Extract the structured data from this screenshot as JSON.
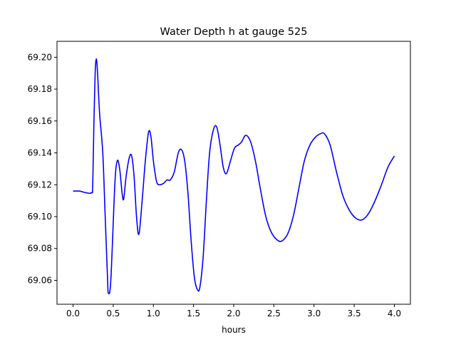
{
  "chart_data": {
    "type": "line",
    "title": "Water Depth h at gauge 525",
    "xlabel": "hours",
    "ylabel": "",
    "xlim": [
      -0.2,
      4.2
    ],
    "ylim": [
      69.045,
      69.21
    ],
    "xticks": [
      0.0,
      0.5,
      1.0,
      1.5,
      2.0,
      2.5,
      3.0,
      3.5,
      4.0
    ],
    "xtick_labels": [
      "0.0",
      "0.5",
      "1.0",
      "1.5",
      "2.0",
      "2.5",
      "3.0",
      "3.5",
      "4.0"
    ],
    "yticks": [
      69.06,
      69.08,
      69.1,
      69.12,
      69.14,
      69.16,
      69.18,
      69.2
    ],
    "ytick_labels": [
      "69.06",
      "69.08",
      "69.10",
      "69.12",
      "69.14",
      "69.16",
      "69.18",
      "69.20"
    ],
    "grid": false,
    "legend": "none",
    "series": [
      {
        "color": "#0000ff",
        "points": [
          [
            0.0,
            69.116
          ],
          [
            0.08,
            69.116
          ],
          [
            0.16,
            69.115
          ],
          [
            0.23,
            69.115
          ],
          [
            0.245,
            69.12
          ],
          [
            0.26,
            69.16
          ],
          [
            0.275,
            69.19
          ],
          [
            0.29,
            69.199
          ],
          [
            0.305,
            69.19
          ],
          [
            0.33,
            69.165
          ],
          [
            0.37,
            69.14
          ],
          [
            0.4,
            69.1
          ],
          [
            0.43,
            69.06
          ],
          [
            0.44,
            69.052
          ],
          [
            0.47,
            69.06
          ],
          [
            0.52,
            69.12
          ],
          [
            0.55,
            69.135
          ],
          [
            0.58,
            69.13
          ],
          [
            0.61,
            69.115
          ],
          [
            0.63,
            69.111
          ],
          [
            0.66,
            69.125
          ],
          [
            0.7,
            69.137
          ],
          [
            0.73,
            69.138
          ],
          [
            0.76,
            69.125
          ],
          [
            0.79,
            69.1
          ],
          [
            0.82,
            69.089
          ],
          [
            0.86,
            69.11
          ],
          [
            0.9,
            69.135
          ],
          [
            0.94,
            69.153
          ],
          [
            0.97,
            69.15
          ],
          [
            1.0,
            69.135
          ],
          [
            1.04,
            69.122
          ],
          [
            1.08,
            69.12
          ],
          [
            1.13,
            69.121
          ],
          [
            1.17,
            69.123
          ],
          [
            1.21,
            69.123
          ],
          [
            1.26,
            69.128
          ],
          [
            1.31,
            69.14
          ],
          [
            1.35,
            69.142
          ],
          [
            1.39,
            69.135
          ],
          [
            1.43,
            69.115
          ],
          [
            1.47,
            69.085
          ],
          [
            1.51,
            69.062
          ],
          [
            1.55,
            69.054
          ],
          [
            1.58,
            69.056
          ],
          [
            1.62,
            69.075
          ],
          [
            1.66,
            69.11
          ],
          [
            1.7,
            69.14
          ],
          [
            1.75,
            69.155
          ],
          [
            1.79,
            69.156
          ],
          [
            1.83,
            69.145
          ],
          [
            1.87,
            69.131
          ],
          [
            1.91,
            69.127
          ],
          [
            1.96,
            69.135
          ],
          [
            2.01,
            69.143
          ],
          [
            2.06,
            69.145
          ],
          [
            2.1,
            69.147
          ],
          [
            2.15,
            69.151
          ],
          [
            2.21,
            69.147
          ],
          [
            2.27,
            69.135
          ],
          [
            2.33,
            69.118
          ],
          [
            2.4,
            69.1
          ],
          [
            2.47,
            69.09
          ],
          [
            2.55,
            69.085
          ],
          [
            2.61,
            69.085
          ],
          [
            2.68,
            69.09
          ],
          [
            2.75,
            69.102
          ],
          [
            2.82,
            69.12
          ],
          [
            2.88,
            69.135
          ],
          [
            2.95,
            69.145
          ],
          [
            3.02,
            69.15
          ],
          [
            3.08,
            69.152
          ],
          [
            3.13,
            69.152
          ],
          [
            3.2,
            69.145
          ],
          [
            3.28,
            69.128
          ],
          [
            3.36,
            69.113
          ],
          [
            3.44,
            69.104
          ],
          [
            3.52,
            69.099
          ],
          [
            3.6,
            69.098
          ],
          [
            3.68,
            69.102
          ],
          [
            3.76,
            69.11
          ],
          [
            3.84,
            69.12
          ],
          [
            3.92,
            69.131
          ],
          [
            4.0,
            69.138
          ]
        ]
      }
    ]
  }
}
